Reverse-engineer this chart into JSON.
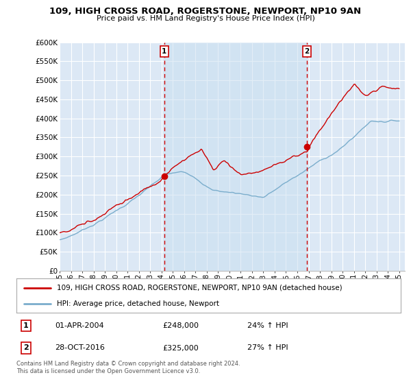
{
  "title": "109, HIGH CROSS ROAD, ROGERSTONE, NEWPORT, NP10 9AN",
  "subtitle": "Price paid vs. HM Land Registry's House Price Index (HPI)",
  "ylim": [
    0,
    600000
  ],
  "yticks": [
    0,
    50000,
    100000,
    150000,
    200000,
    250000,
    300000,
    350000,
    400000,
    450000,
    500000,
    550000,
    600000
  ],
  "ytick_labels": [
    "£0",
    "£50K",
    "£100K",
    "£150K",
    "£200K",
    "£250K",
    "£300K",
    "£350K",
    "£400K",
    "£450K",
    "£500K",
    "£550K",
    "£600K"
  ],
  "purchase1_date": 2004.25,
  "purchase1_price": 248000,
  "purchase1_label": "1",
  "purchase2_date": 2016.83,
  "purchase2_price": 325000,
  "purchase2_label": "2",
  "legend_line1": "109, HIGH CROSS ROAD, ROGERSTONE, NEWPORT, NP10 9AN (detached house)",
  "legend_line2": "HPI: Average price, detached house, Newport",
  "footnote": "Contains HM Land Registry data © Crown copyright and database right 2024.\nThis data is licensed under the Open Government Licence v3.0.",
  "red_line_color": "#cc0000",
  "blue_line_color": "#7aadcc",
  "background_color": "#ffffff",
  "plot_bg_color": "#dce8f5",
  "grid_color": "#ffffff"
}
